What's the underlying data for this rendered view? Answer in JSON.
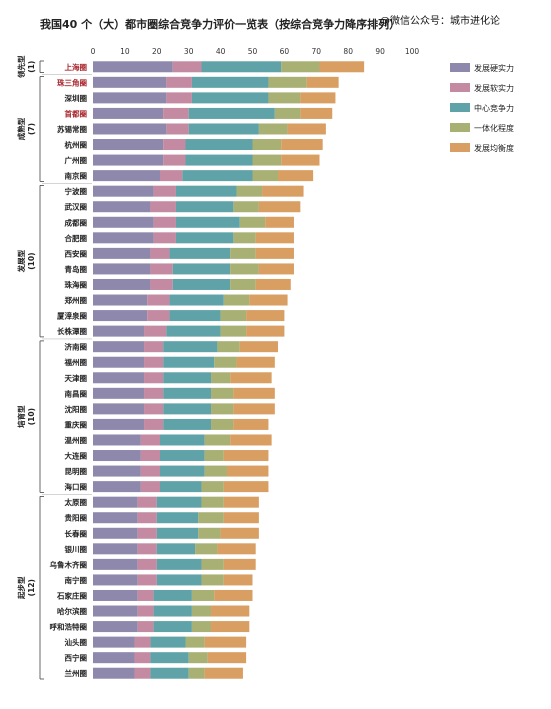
{
  "header": {
    "title": "我国40 个（大）都市圈综合竞争力评价一览表（按综合竞争力降序排列）",
    "watermark": "@微信公众号：城市进化论"
  },
  "colors": {
    "s1": "#8e88ad",
    "s2": "#c48aa2",
    "s3": "#5fa3a8",
    "s4": "#a8b074",
    "s5": "#d99e62"
  },
  "chart_data": {
    "type": "bar",
    "orientation": "horizontal",
    "stacked": true,
    "title": "我国40 个（大）都市圈综合竞争力评价一览表（按综合竞争力降序排列）",
    "xlim": [
      0,
      100
    ],
    "xticks": [
      0,
      10,
      20,
      30,
      40,
      50,
      60,
      70,
      80,
      90,
      100
    ],
    "grid": false,
    "legend_position": "right",
    "series_names": [
      "发展硬实力",
      "发展软实力",
      "中心竞争力",
      "一体化程度",
      "发展均衡度"
    ],
    "groups": [
      {
        "name": "领先型",
        "count": "(1)",
        "start": 0,
        "end": 0
      },
      {
        "name": "成熟型",
        "count": "(7)",
        "start": 1,
        "end": 7
      },
      {
        "name": "发展型",
        "count": "(10)",
        "start": 8,
        "end": 17
      },
      {
        "name": "培育型",
        "count": "(10)",
        "start": 18,
        "end": 27
      },
      {
        "name": "起步型",
        "count": "(12)",
        "start": 28,
        "end": 39
      }
    ],
    "highlighted": [
      "上海圈",
      "珠三角圈",
      "首都圈"
    ],
    "categories": [
      "上海圈",
      "珠三角圈",
      "深圳圈",
      "首都圈",
      "苏锡常圈",
      "杭州圈",
      "广州圈",
      "南京圈",
      "宁波圈",
      "武汉圈",
      "成都圈",
      "合肥圈",
      "西安圈",
      "青岛圈",
      "珠海圈",
      "郑州圈",
      "厦漳泉圈",
      "长株潭圈",
      "济南圈",
      "福州圈",
      "天津圈",
      "南昌圈",
      "沈阳圈",
      "重庆圈",
      "温州圈",
      "大连圈",
      "昆明圈",
      "海口圈",
      "太原圈",
      "贵阳圈",
      "长春圈",
      "银川圈",
      "乌鲁木齐圈",
      "南宁圈",
      "石家庄圈",
      "哈尔滨圈",
      "呼和浩特圈",
      "汕头圈",
      "西宁圈",
      "兰州圈"
    ],
    "series": [
      {
        "name": "发展硬实力",
        "values": [
          25,
          23,
          23,
          22,
          23,
          22,
          22,
          21,
          19,
          18,
          19,
          19,
          18,
          18,
          18,
          17,
          17,
          16,
          16,
          16,
          16,
          16,
          16,
          16,
          15,
          15,
          15,
          15,
          14,
          14,
          14,
          14,
          14,
          14,
          14,
          14,
          14,
          13,
          13,
          13
        ]
      },
      {
        "name": "发展软实力",
        "values": [
          9,
          8,
          8,
          8,
          7,
          7,
          7,
          7,
          7,
          8,
          7,
          7,
          6,
          7,
          7,
          7,
          7,
          7,
          6,
          6,
          6,
          6,
          6,
          6,
          6,
          6,
          6,
          6,
          6,
          6,
          6,
          6,
          6,
          6,
          5,
          5,
          5,
          5,
          5,
          5
        ]
      },
      {
        "name": "中心竞争力",
        "values": [
          25,
          24,
          24,
          27,
          22,
          21,
          21,
          22,
          19,
          18,
          20,
          18,
          19,
          18,
          18,
          17,
          16,
          17,
          17,
          16,
          15,
          15,
          15,
          15,
          14,
          14,
          14,
          13,
          14,
          13,
          13,
          12,
          14,
          14,
          12,
          12,
          12,
          11,
          12,
          12
        ]
      },
      {
        "name": "一体化程度",
        "values": [
          12,
          12,
          10,
          8,
          9,
          9,
          9,
          8,
          8,
          8,
          8,
          7,
          8,
          9,
          8,
          8,
          8,
          8,
          7,
          7,
          6,
          7,
          7,
          7,
          8,
          6,
          7,
          7,
          7,
          8,
          7,
          7,
          7,
          7,
          7,
          6,
          6,
          6,
          6,
          5
        ]
      },
      {
        "name": "发展均衡度",
        "values": [
          14,
          10,
          11,
          10,
          12,
          13,
          12,
          11,
          13,
          13,
          9,
          12,
          12,
          11,
          11,
          12,
          12,
          12,
          12,
          12,
          13,
          13,
          13,
          11,
          13,
          14,
          13,
          14,
          11,
          11,
          12,
          12,
          10,
          9,
          12,
          12,
          12,
          13,
          12,
          12
        ]
      }
    ]
  }
}
